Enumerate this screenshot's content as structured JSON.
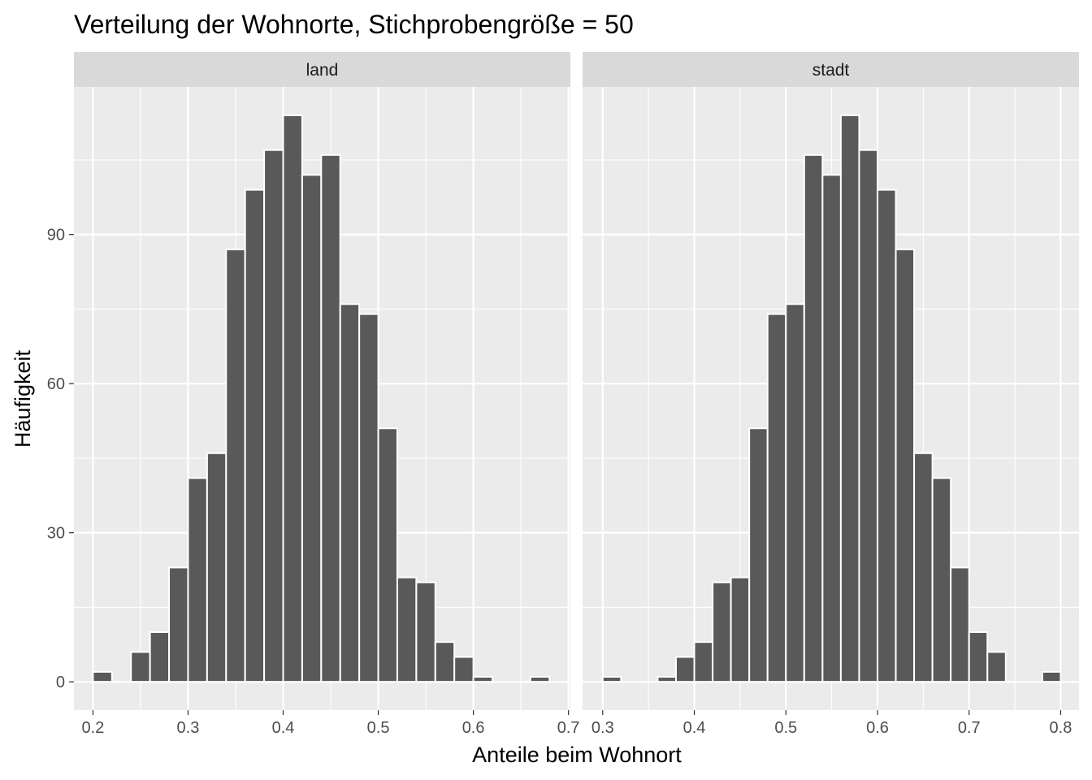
{
  "chart_data": {
    "type": "bar",
    "title": "Verteilung der Wohnorte, Stichprobengröße = 50",
    "xlabel": "Anteile beim Wohnort",
    "ylabel": "Häufigkeit",
    "yticks": [
      0,
      30,
      60,
      90
    ],
    "ylim": [
      -5.7,
      119.7
    ],
    "grid": true,
    "legend": "none",
    "colors": {
      "bar_fill": "#595959",
      "bar_stroke": "#ffffff",
      "panel_bg": "#ebebeb",
      "strip_bg": "#d9d9d9",
      "grid": "#ffffff"
    },
    "bin_width": 0.02,
    "facets": [
      {
        "label": "land",
        "xlim": [
          0.18,
          0.702
        ],
        "xticks": [
          0.2,
          0.3,
          0.4,
          0.5,
          0.6,
          0.7
        ],
        "xtick_labels": [
          "0.2",
          "0.3",
          "0.4",
          "0.5",
          "0.6",
          "0.7"
        ],
        "x": [
          0.21,
          0.25,
          0.27,
          0.29,
          0.31,
          0.33,
          0.35,
          0.37,
          0.39,
          0.41,
          0.43,
          0.45,
          0.47,
          0.49,
          0.51,
          0.53,
          0.55,
          0.57,
          0.59,
          0.61,
          0.67
        ],
        "values": [
          2,
          6,
          10,
          23,
          41,
          46,
          87,
          99,
          107,
          114,
          102,
          106,
          76,
          74,
          51,
          21,
          20,
          8,
          5,
          1,
          1
        ]
      },
      {
        "label": "stadt",
        "xlim": [
          0.278,
          0.82
        ],
        "xticks": [
          0.3,
          0.4,
          0.5,
          0.6,
          0.7,
          0.8
        ],
        "xtick_labels": [
          "0.3",
          "0.4",
          "0.5",
          "0.6",
          "0.7",
          "0.8"
        ],
        "x": [
          0.31,
          0.37,
          0.39,
          0.41,
          0.43,
          0.45,
          0.47,
          0.49,
          0.51,
          0.53,
          0.55,
          0.57,
          0.59,
          0.61,
          0.63,
          0.65,
          0.67,
          0.69,
          0.71,
          0.73,
          0.79
        ],
        "values": [
          1,
          1,
          5,
          8,
          20,
          21,
          51,
          74,
          76,
          106,
          102,
          114,
          107,
          99,
          87,
          46,
          41,
          23,
          10,
          6,
          2
        ]
      }
    ]
  }
}
